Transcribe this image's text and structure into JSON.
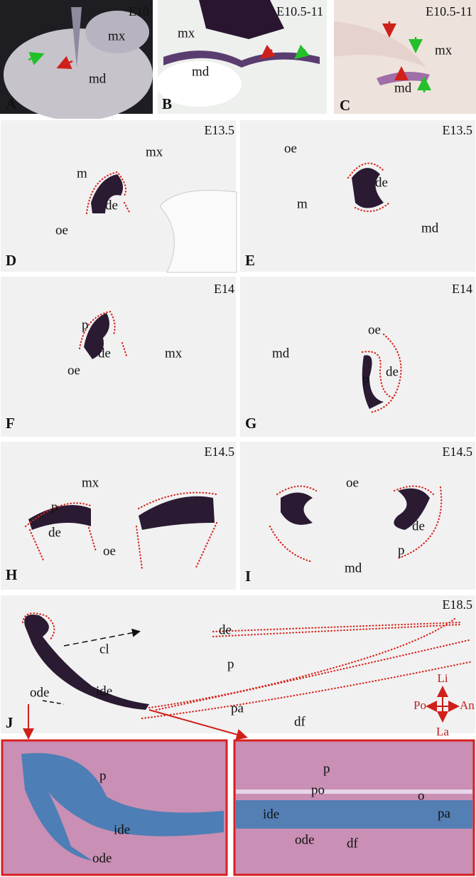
{
  "panels": [
    {
      "letter": "A",
      "stage": "E10",
      "labels": [
        "mx",
        "md"
      ]
    },
    {
      "letter": "B",
      "stage": "E10.5-11",
      "labels": [
        "mx",
        "md"
      ]
    },
    {
      "letter": "C",
      "stage": "E10.5-11",
      "labels": [
        "mx",
        "md"
      ]
    },
    {
      "letter": "D",
      "stage": "E13.5",
      "labels": [
        "mx",
        "m",
        "de",
        "oe"
      ]
    },
    {
      "letter": "E",
      "stage": "E13.5",
      "labels": [
        "oe",
        "m",
        "de",
        "md"
      ]
    },
    {
      "letter": "F",
      "stage": "E14",
      "labels": [
        "p",
        "de",
        "oe",
        "mx"
      ]
    },
    {
      "letter": "G",
      "stage": "E14",
      "labels": [
        "oe",
        "md",
        "de",
        "p"
      ]
    },
    {
      "letter": "H",
      "stage": "E14.5",
      "labels": [
        "mx",
        "p",
        "de",
        "oe"
      ]
    },
    {
      "letter": "I",
      "stage": "E14.5",
      "labels": [
        "oe",
        "de",
        "p",
        "md"
      ]
    },
    {
      "letter": "J",
      "stage": "E18.5",
      "labels": [
        "de",
        "cl",
        "p",
        "ode",
        "ide",
        "pa",
        "df"
      ],
      "axes": {
        "up": "Li",
        "left": "Po",
        "right": "An",
        "down": "La"
      }
    }
  ],
  "insets": [
    {
      "labels": [
        "p",
        "ide",
        "ode"
      ]
    },
    {
      "labels": [
        "p",
        "po",
        "o",
        "ide",
        "pa",
        "ode",
        "df"
      ]
    }
  ]
}
